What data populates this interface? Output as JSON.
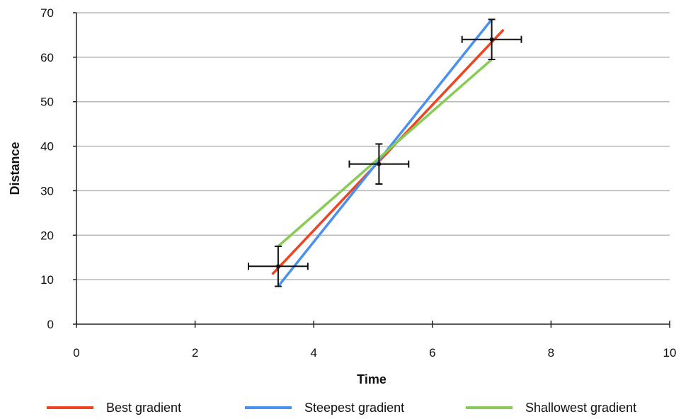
{
  "chart_data": {
    "type": "scatter",
    "title": "",
    "xlabel": "Time",
    "ylabel": "Distance",
    "xlim": [
      0,
      10
    ],
    "ylim": [
      0,
      70
    ],
    "x_ticks": [
      "0",
      "2",
      "4",
      "6",
      "8",
      "10"
    ],
    "y_ticks": [
      "0",
      "10",
      "20",
      "30",
      "40",
      "50",
      "60",
      "70"
    ],
    "grid": "horizontal",
    "legend_position": "bottom",
    "points": [
      {
        "x": 3.4,
        "y": 13,
        "x_error": 0.5,
        "y_error": 4.5
      },
      {
        "x": 5.1,
        "y": 36,
        "x_error": 0.5,
        "y_error": 4.5
      },
      {
        "x": 7.0,
        "y": 64,
        "x_error": 0.5,
        "y_error": 4.5
      }
    ],
    "series": [
      {
        "name": "Best gradient",
        "color": "#ee4422",
        "x": [
          3.3,
          7.2
        ],
        "y": [
          11.2,
          66.2
        ]
      },
      {
        "name": "Steepest gradient",
        "color": "#4a90f0",
        "x": [
          3.4,
          7.0
        ],
        "y": [
          8.5,
          68.5
        ]
      },
      {
        "name": "Shallowest gradient",
        "color": "#88cc55",
        "x": [
          3.4,
          7.0
        ],
        "y": [
          17.5,
          59.5
        ]
      }
    ]
  }
}
